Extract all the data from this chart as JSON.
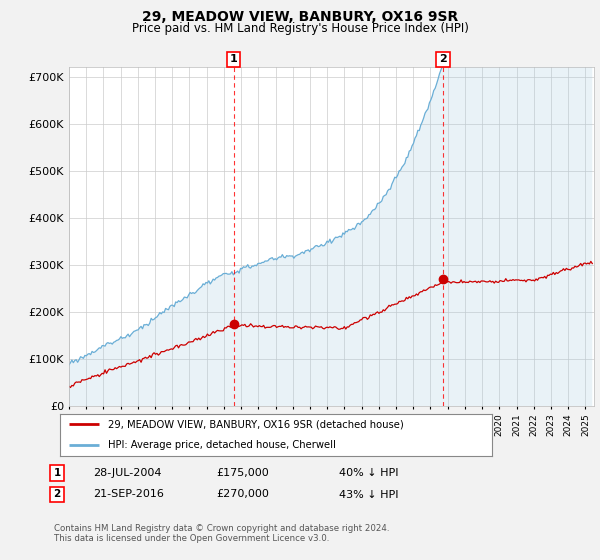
{
  "title": "29, MEADOW VIEW, BANBURY, OX16 9SR",
  "subtitle": "Price paid vs. HM Land Registry's House Price Index (HPI)",
  "ylim": [
    0,
    720000
  ],
  "xlim_start": 1995.0,
  "xlim_end": 2025.5,
  "hpi_color": "#a8cce0",
  "hpi_line_color": "#6aaed6",
  "price_color": "#cc0000",
  "sale1_date": 2004.57,
  "sale1_price": 175000,
  "sale2_date": 2016.72,
  "sale2_price": 270000,
  "legend_entries": [
    "29, MEADOW VIEW, BANBURY, OX16 9SR (detached house)",
    "HPI: Average price, detached house, Cherwell"
  ],
  "annotation1_date_str": "28-JUL-2004",
  "annotation1_price_str": "£175,000",
  "annotation1_note": "40% ↓ HPI",
  "annotation2_date_str": "21-SEP-2016",
  "annotation2_price_str": "£270,000",
  "annotation2_note": "43% ↓ HPI",
  "footer": "Contains HM Land Registry data © Crown copyright and database right 2024.\nThis data is licensed under the Open Government Licence v3.0.",
  "bg_color": "#f2f2f2",
  "plot_bg_color": "#ffffff"
}
